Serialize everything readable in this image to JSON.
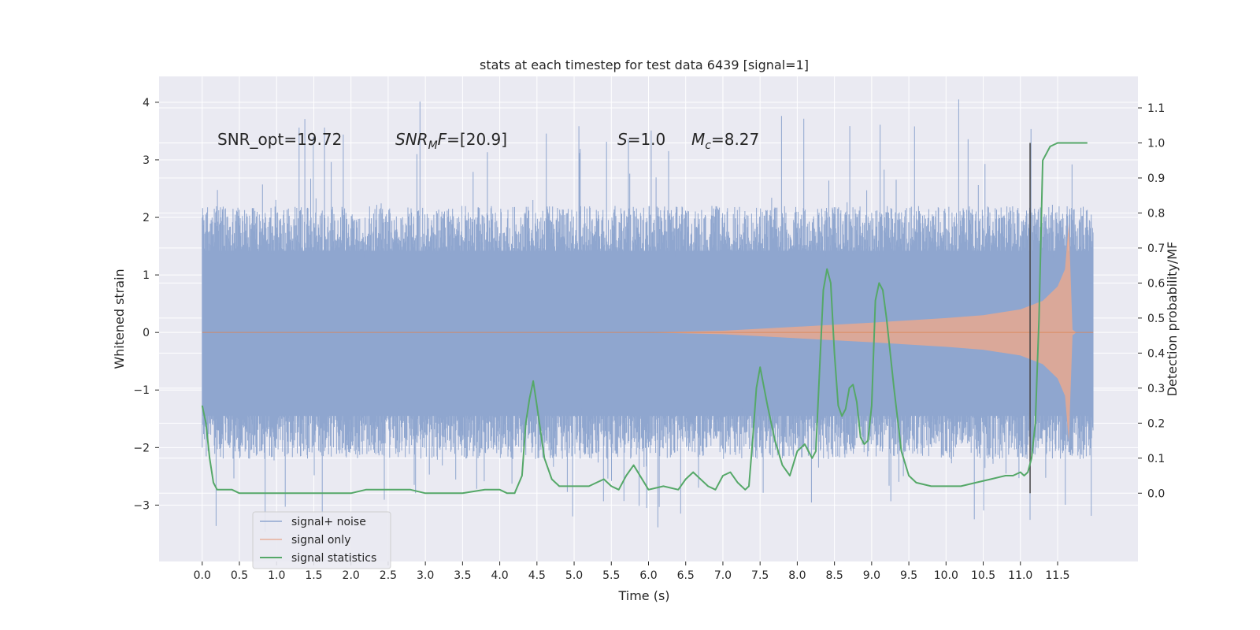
{
  "chart_data": {
    "type": "line",
    "title": "stats at each timestep for test data 6439 [signal=1]",
    "xlabel": "Time (s)",
    "ylabel_left": "Whitened strain",
    "ylabel_right": "Detection probability/MF",
    "xlim": [
      -0.58,
      12.58
    ],
    "ylim_left": [
      -3.98,
      4.45
    ],
    "ylim_right": [
      -0.195,
      1.19
    ],
    "x_ticks": [
      "0.0",
      "0.5",
      "1.0",
      "1.5",
      "2.0",
      "2.5",
      "3.0",
      "3.5",
      "4.0",
      "4.5",
      "5.0",
      "5.5",
      "6.0",
      "6.5",
      "7.0",
      "7.5",
      "8.0",
      "8.5",
      "9.0",
      "9.5",
      "10.0",
      "10.5",
      "11.0",
      "11.5"
    ],
    "y_ticks_left": [
      "−3",
      "−2",
      "−1",
      "0",
      "1",
      "2",
      "3",
      "4"
    ],
    "y_ticks_right": [
      "0.0",
      "0.1",
      "0.2",
      "0.3",
      "0.4",
      "0.5",
      "0.6",
      "0.7",
      "0.8",
      "0.9",
      "1.0",
      "1.1"
    ],
    "grid": true,
    "legend_position": "lower-left",
    "annotations": {
      "snr_opt": "SNR_opt=19.72",
      "snr_mf_var": "SNR",
      "snr_mf_sub": "M",
      "snr_mf_var2": "F",
      "snr_mf_val": "=[20.9]",
      "s_var": "S",
      "s_val": "=1.0",
      "mc_var": "M",
      "mc_sub": "c",
      "mc_val": "=8.27"
    },
    "vertical_line": {
      "x": 11.13,
      "y_range": [
        0.0,
        1.0
      ],
      "color": "#444444"
    },
    "series": [
      {
        "name": "signal+ noise",
        "color": "#8fa6cf",
        "noise_envelope": {
          "x_range": [
            0.0,
            11.98
          ],
          "typical_max": 1.42,
          "typical_min": -1.45,
          "peak_max": 4.1,
          "peak_min": -3.6
        }
      },
      {
        "name": "signal only",
        "color": "#dd8452",
        "envelope_x": [
          0.0,
          6.0,
          7.0,
          8.0,
          9.0,
          10.0,
          10.5,
          11.0,
          11.3,
          11.5,
          11.6,
          11.65,
          11.7,
          11.75,
          11.98
        ],
        "envelope_amp": [
          0.0,
          0.0,
          0.03,
          0.1,
          0.17,
          0.25,
          0.3,
          0.4,
          0.55,
          0.8,
          1.1,
          1.9,
          0.05,
          0.0,
          0.0
        ]
      },
      {
        "name": "signal statistics",
        "color": "#55a868",
        "x": [
          0.0,
          0.05,
          0.1,
          0.15,
          0.2,
          0.25,
          0.3,
          0.4,
          0.5,
          0.6,
          0.8,
          1.0,
          1.2,
          1.5,
          1.8,
          2.0,
          2.2,
          2.4,
          2.6,
          2.8,
          3.0,
          3.3,
          3.5,
          3.8,
          4.0,
          4.1,
          4.2,
          4.3,
          4.35,
          4.4,
          4.45,
          4.5,
          4.6,
          4.7,
          4.8,
          5.0,
          5.2,
          5.3,
          5.4,
          5.5,
          5.6,
          5.7,
          5.8,
          6.0,
          6.2,
          6.4,
          6.5,
          6.6,
          6.7,
          6.8,
          6.9,
          7.0,
          7.1,
          7.2,
          7.3,
          7.35,
          7.4,
          7.45,
          7.5,
          7.6,
          7.7,
          7.8,
          7.9,
          8.0,
          8.1,
          8.15,
          8.2,
          8.25,
          8.3,
          8.35,
          8.4,
          8.45,
          8.5,
          8.55,
          8.6,
          8.65,
          8.7,
          8.75,
          8.8,
          8.85,
          8.9,
          8.95,
          9.0,
          9.05,
          9.1,
          9.15,
          9.2,
          9.3,
          9.4,
          9.5,
          9.6,
          9.8,
          10.0,
          10.2,
          10.4,
          10.6,
          10.8,
          10.9,
          11.0,
          11.05,
          11.1,
          11.15,
          11.2,
          11.25,
          11.3,
          11.4,
          11.5,
          11.6,
          11.7,
          11.8,
          11.9
        ],
        "y": [
          0.25,
          0.2,
          0.1,
          0.03,
          0.01,
          0.01,
          0.01,
          0.01,
          0.0,
          0.0,
          0.0,
          0.0,
          0.0,
          0.0,
          0.0,
          0.0,
          0.01,
          0.01,
          0.01,
          0.01,
          0.0,
          0.0,
          0.0,
          0.01,
          0.01,
          0.0,
          0.0,
          0.05,
          0.2,
          0.27,
          0.32,
          0.25,
          0.1,
          0.04,
          0.02,
          0.02,
          0.02,
          0.03,
          0.04,
          0.02,
          0.01,
          0.05,
          0.08,
          0.01,
          0.02,
          0.01,
          0.04,
          0.06,
          0.04,
          0.02,
          0.01,
          0.05,
          0.06,
          0.03,
          0.01,
          0.02,
          0.15,
          0.3,
          0.36,
          0.25,
          0.15,
          0.08,
          0.05,
          0.12,
          0.14,
          0.12,
          0.1,
          0.12,
          0.35,
          0.58,
          0.64,
          0.6,
          0.4,
          0.25,
          0.22,
          0.24,
          0.3,
          0.31,
          0.26,
          0.16,
          0.14,
          0.15,
          0.25,
          0.55,
          0.6,
          0.58,
          0.5,
          0.3,
          0.12,
          0.05,
          0.03,
          0.02,
          0.02,
          0.02,
          0.03,
          0.04,
          0.05,
          0.05,
          0.06,
          0.05,
          0.06,
          0.1,
          0.2,
          0.5,
          0.95,
          0.99,
          1.0,
          1.0,
          1.0,
          1.0,
          1.0
        ]
      }
    ]
  }
}
